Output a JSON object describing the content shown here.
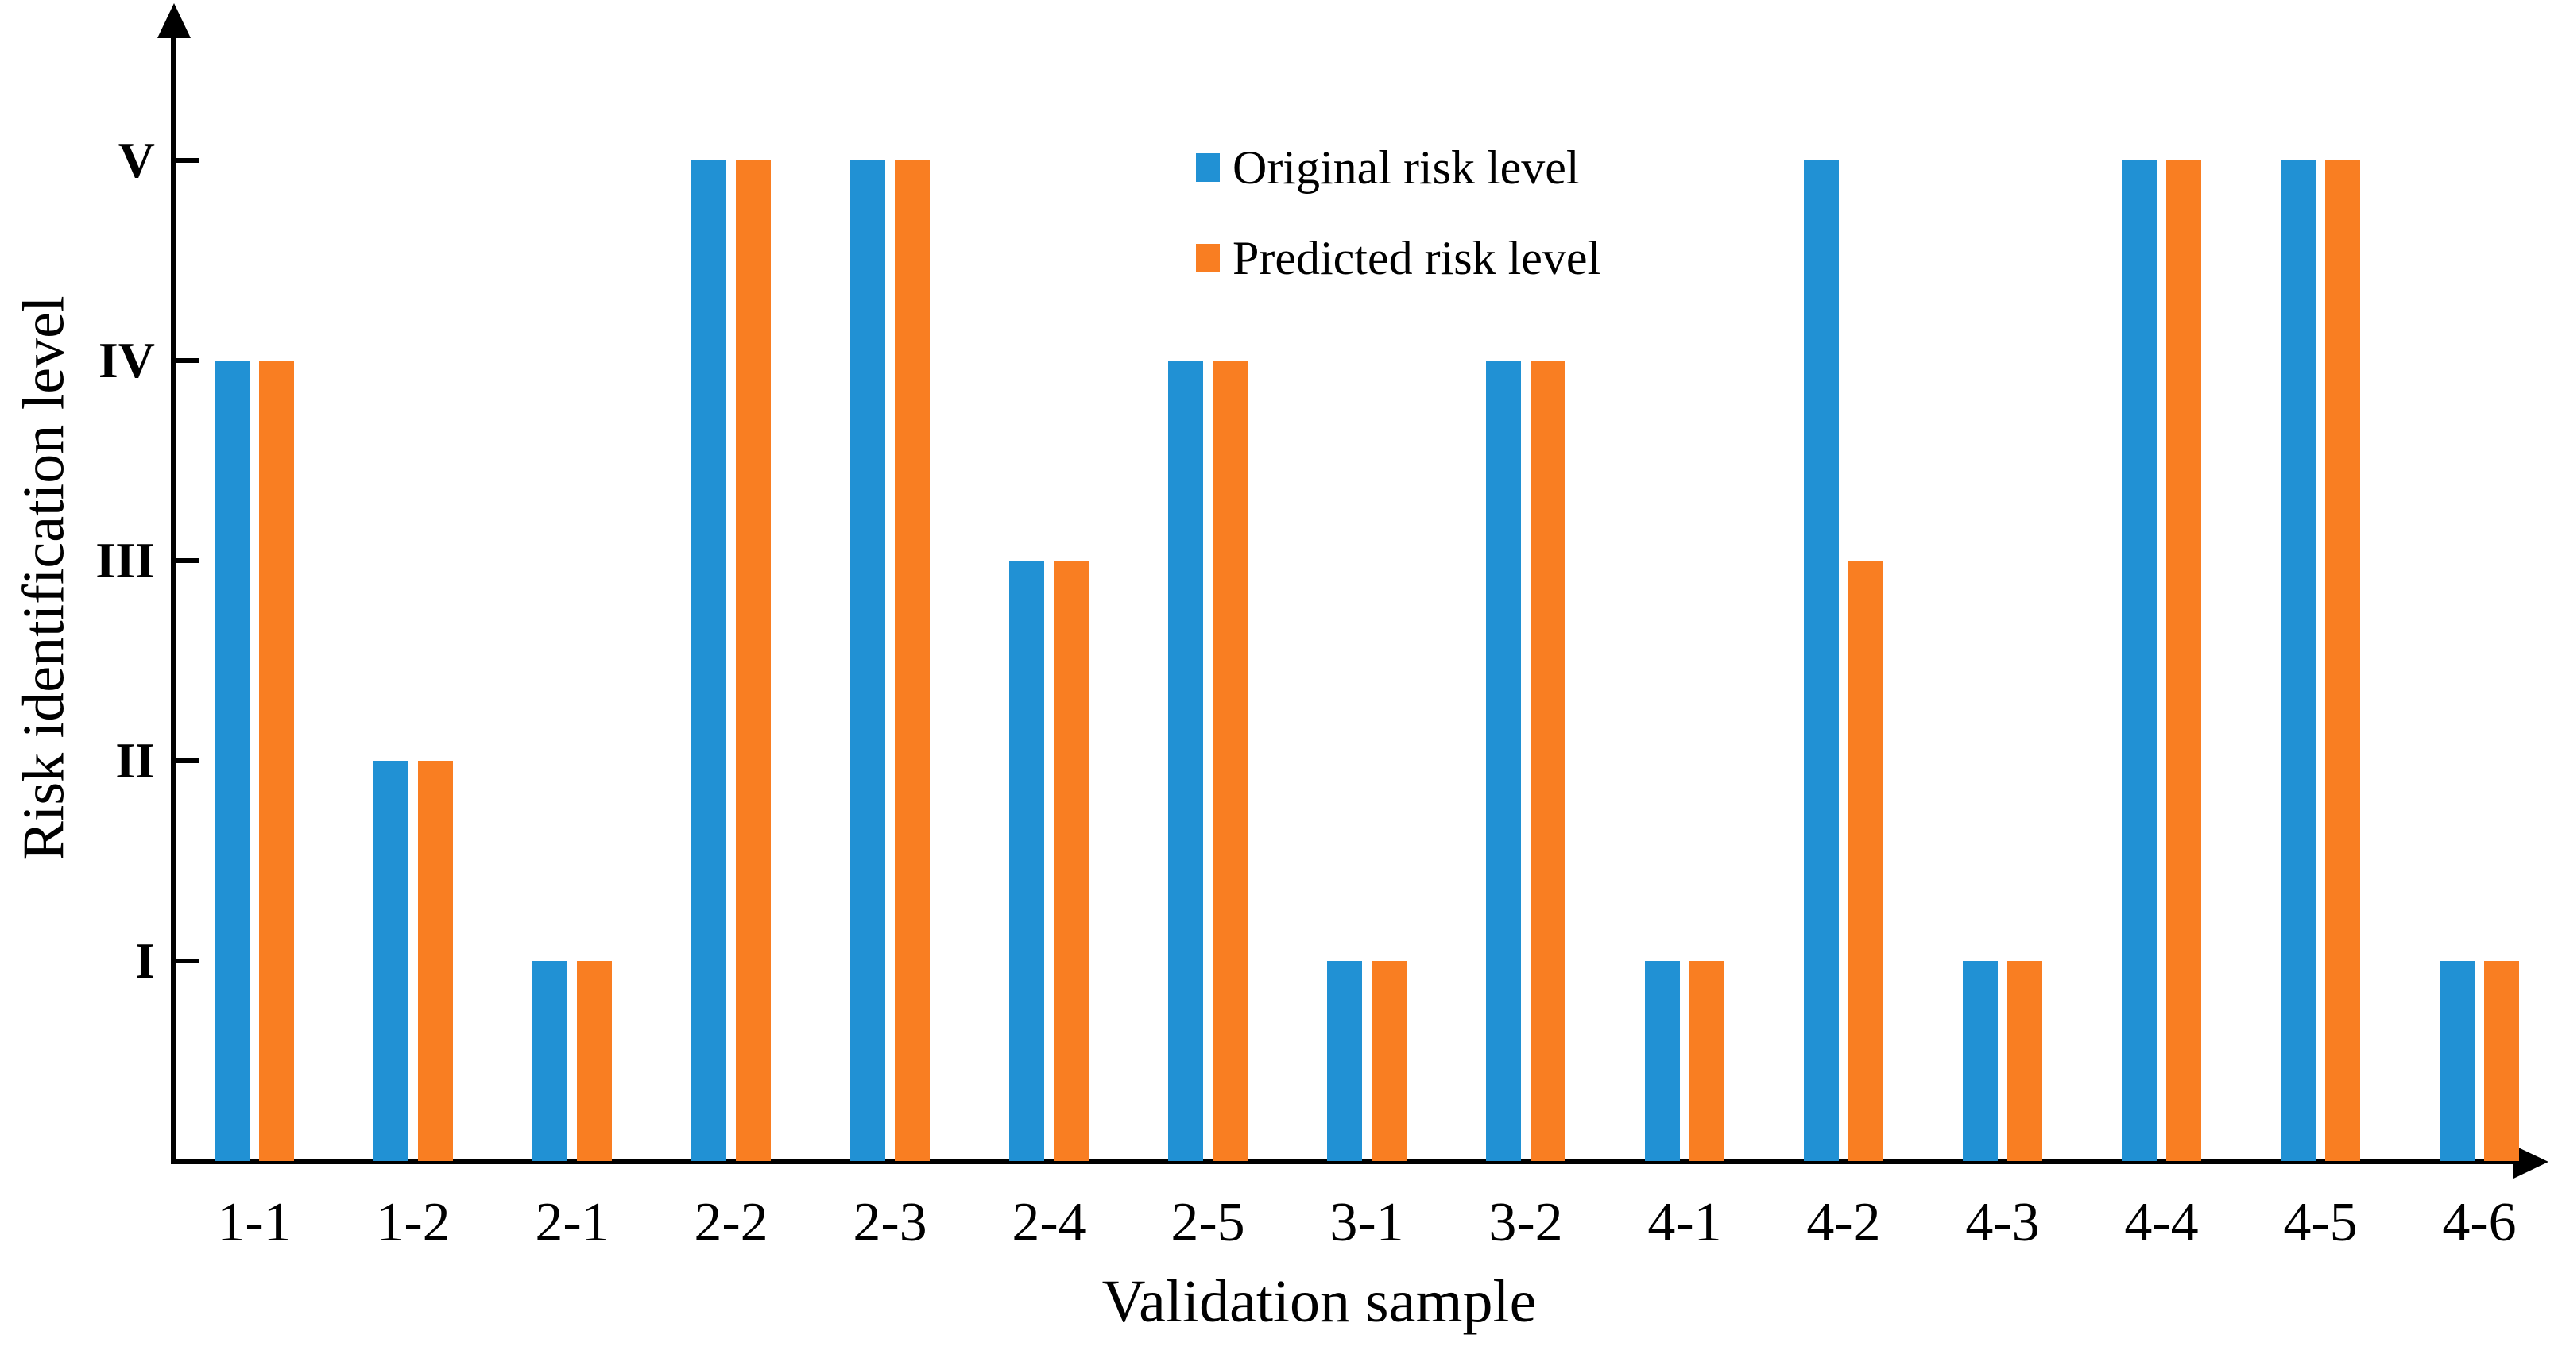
{
  "chart_data": {
    "type": "bar",
    "title": "",
    "categories": [
      "1-1",
      "1-2",
      "2-1",
      "2-2",
      "2-3",
      "2-4",
      "2-5",
      "3-1",
      "3-2",
      "4-1",
      "4-2",
      "4-3",
      "4-4",
      "4-5",
      "4-6"
    ],
    "series": [
      {
        "name": "Original risk level",
        "color": "#2191D4",
        "values": [
          4,
          2,
          1,
          5,
          5,
          3,
          4,
          1,
          4,
          1,
          5,
          1,
          5,
          5,
          1
        ]
      },
      {
        "name": "Predicted risk level",
        "color": "#F97E22",
        "values": [
          4,
          2,
          1,
          5,
          5,
          3,
          4,
          1,
          4,
          1,
          3,
          1,
          5,
          5,
          1
        ]
      }
    ],
    "xlabel": "Validation sample",
    "ylabel": "Risk identification level",
    "y_ticks": [
      "I",
      "II",
      "III",
      "IV",
      "V"
    ],
    "y_tick_values": [
      1,
      2,
      3,
      4,
      5
    ],
    "ylim": [
      0,
      5.7
    ],
    "grid": false,
    "legend_position": "top-center",
    "axis_color": "#000000",
    "background_color": "#ffffff"
  }
}
